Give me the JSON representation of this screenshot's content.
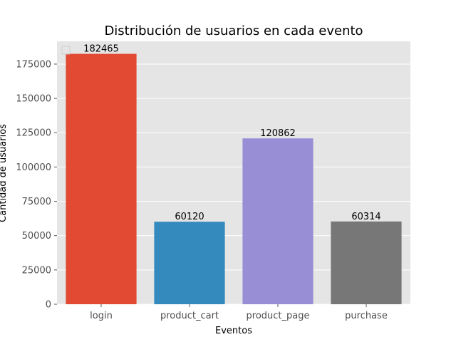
{
  "chart_data": {
    "type": "bar",
    "title": "Distribución de usuarios en cada evento",
    "xlabel": "Eventos",
    "ylabel": "Cantidad de usuarios",
    "categories": [
      "login",
      "product_cart",
      "product_page",
      "purchase"
    ],
    "values": [
      182465,
      60120,
      120862,
      60314
    ],
    "data_labels": [
      "182465",
      "60120",
      "120862",
      "60314"
    ],
    "colors": [
      "#E24A33",
      "#348ABD",
      "#988ED5",
      "#777777"
    ],
    "ylim": [
      0,
      191588
    ],
    "yticks": [
      0,
      25000,
      50000,
      75000,
      100000,
      125000,
      150000,
      175000
    ],
    "ytick_labels": [
      "0",
      "25000",
      "50000",
      "75000",
      "100000",
      "125000",
      "150000",
      "175000"
    ],
    "grid": true,
    "style": "ggplot",
    "legend": "top-left",
    "background": "#E5E5E5"
  }
}
